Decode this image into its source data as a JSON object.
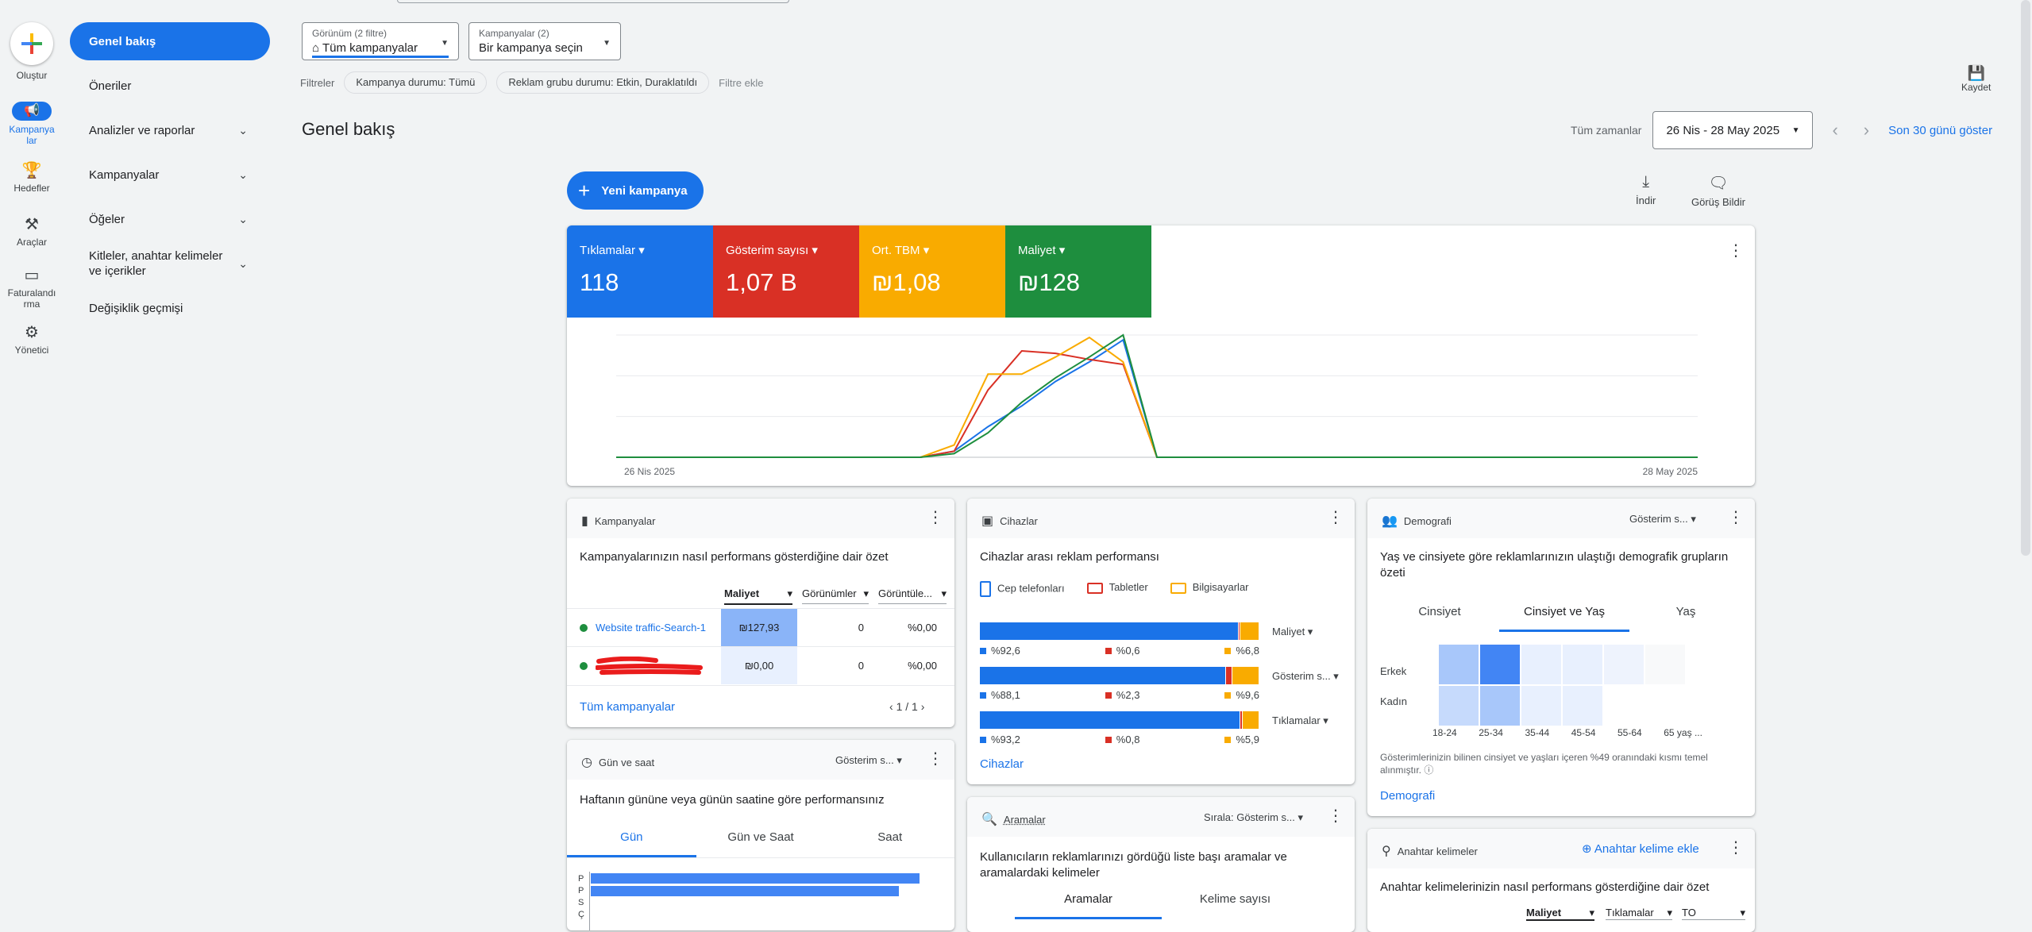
{
  "rail": {
    "create": "Oluştur",
    "campaigns": "Kampanyalar",
    "goals": "Hedefler",
    "tools": "Araçlar",
    "billing": "Faturalandırma",
    "admin": "Yönetici"
  },
  "nav": {
    "overview": "Genel bakış",
    "recommendations": "Öneriler",
    "insights": "Analizler ve raporlar",
    "campaigns": "Kampanyalar",
    "assets": "Öğeler",
    "audiences": "Kitleler, anahtar kelimeler ve içerikler",
    "changes": "Değişiklik geçmişi"
  },
  "view_select": {
    "label": "Görünüm (2 filtre)",
    "value": "Tüm kampanyalar"
  },
  "campaign_select": {
    "label": "Kampanyalar (2)",
    "value": "Bir kampanya seçin"
  },
  "filters": {
    "label": "Filtreler",
    "chip1": "Kampanya durumu: Tümü",
    "chip2": "Reklam grubu durumu: Etkin, Duraklatıldı",
    "add": "Filtre ekle"
  },
  "save_label": "Kaydet",
  "page_title": "Genel bakış",
  "date": {
    "all_time": "Tüm zamanlar",
    "range": "26 Nis - 28 May 2025",
    "last30": "Son 30 günü göster"
  },
  "new_campaign": "Yeni kampanya",
  "download": "İndir",
  "feedback": "Görüş Bildir",
  "colors": {
    "blue": "#1a73e8",
    "red": "#d93025",
    "yellow": "#f9ab00",
    "green": "#1e8e3e"
  },
  "scorecards": [
    {
      "title": "Tıklamalar",
      "value": "118"
    },
    {
      "title": "Gösterim sayısı",
      "value": "1,07 B"
    },
    {
      "title": "Ort. TBM",
      "value": "₪1,08"
    },
    {
      "title": "Maliyet",
      "value": "₪128"
    }
  ],
  "chart_data": {
    "type": "line",
    "x_start": "26 Nis 2025",
    "x_end": "28 May 2025",
    "x": [
      0,
      1,
      2,
      3,
      4,
      5,
      6,
      7,
      8,
      9,
      10,
      11,
      12,
      13,
      14,
      15,
      16,
      17,
      18,
      19,
      20,
      21,
      22,
      23,
      24,
      25,
      26,
      27,
      28,
      29,
      30,
      31,
      32
    ],
    "series": [
      {
        "name": "Tıklamalar",
        "color": "#1a73e8",
        "values": [
          0,
          0,
          0,
          0,
          0,
          0,
          0,
          0,
          0,
          0,
          0.05,
          0.25,
          0.42,
          0.62,
          0.78,
          0.96,
          0,
          0,
          0,
          0,
          0,
          0,
          0,
          0,
          0,
          0,
          0,
          0,
          0,
          0,
          0,
          0,
          0
        ]
      },
      {
        "name": "Gösterim sayısı",
        "color": "#d93025",
        "values": [
          0,
          0,
          0,
          0,
          0,
          0,
          0,
          0,
          0,
          0,
          0.05,
          0.55,
          0.87,
          0.85,
          0.8,
          0.76,
          0,
          0,
          0,
          0,
          0,
          0,
          0,
          0,
          0,
          0,
          0,
          0,
          0,
          0,
          0,
          0,
          0
        ]
      },
      {
        "name": "Ort. TBM",
        "color": "#f9ab00",
        "values": [
          0,
          0,
          0,
          0,
          0,
          0,
          0,
          0,
          0,
          0,
          0.1,
          0.68,
          0.68,
          0.82,
          0.98,
          0.78,
          0,
          0,
          0,
          0,
          0,
          0,
          0,
          0,
          0,
          0,
          0,
          0,
          0,
          0,
          0,
          0,
          0
        ]
      },
      {
        "name": "Maliyet",
        "color": "#1e8e3e",
        "values": [
          0,
          0,
          0,
          0,
          0,
          0,
          0,
          0,
          0,
          0,
          0.03,
          0.2,
          0.45,
          0.65,
          0.82,
          1.0,
          0,
          0,
          0,
          0,
          0,
          0,
          0,
          0,
          0,
          0,
          0,
          0,
          0,
          0,
          0,
          0,
          0
        ]
      }
    ]
  },
  "campaigns_card": {
    "title": "Kampanyalar",
    "subtitle": "Kampanyalarınızın nasıl performans gösterdiğine dair özet",
    "col1": "Maliyet",
    "col2": "Görünümler",
    "col3": "Görüntüle...",
    "rows": [
      {
        "name": "Website traffic-Search-1",
        "cost": "₪127,93",
        "views": "0",
        "rate": "%0,00"
      },
      {
        "name": "",
        "cost": "₪0,00",
        "views": "0",
        "rate": "%0,00"
      }
    ],
    "all_link": "Tüm kampanyalar",
    "pager": "1 / 1"
  },
  "devices_card": {
    "title": "Cihazlar",
    "subtitle": "Cihazlar arası reklam performansı",
    "legend": [
      "Cep telefonları",
      "Tabletler",
      "Bilgisayarlar"
    ],
    "rows": [
      {
        "metric": "Maliyet",
        "mobile": 92.6,
        "tablet": 0.6,
        "desktop": 6.8,
        "mobile_lbl": "%92,6",
        "tablet_lbl": "%0,6",
        "desktop_lbl": "%6,8"
      },
      {
        "metric": "Gösterim s...",
        "mobile": 88.1,
        "tablet": 2.3,
        "desktop": 9.6,
        "mobile_lbl": "%88,1",
        "tablet_lbl": "%2,3",
        "desktop_lbl": "%9,6"
      },
      {
        "metric": "Tıklamalar",
        "mobile": 93.2,
        "tablet": 0.8,
        "desktop": 5.9,
        "mobile_lbl": "%93,2",
        "tablet_lbl": "%0,8",
        "desktop_lbl": "%5,9"
      }
    ],
    "link": "Cihazlar"
  },
  "demo_card": {
    "title": "Demografi",
    "dropdown": "Gösterim s...",
    "subtitle": "Yaş ve cinsiyete göre reklamlarınızın ulaştığı demografik grupların özeti",
    "tabs": [
      "Cinsiyet",
      "Cinsiyet ve Yaş",
      "Yaş"
    ],
    "rows": [
      "Erkek",
      "Kadın"
    ],
    "cols": [
      "18-24",
      "25-34",
      "35-44",
      "45-54",
      "55-64",
      "65 yaş ..."
    ],
    "note": "Gösterimlerinizin bilinen cinsiyet ve yaşları içeren %49 oranındaki kısmı temel alınmıştır.",
    "link": "Demografi"
  },
  "day_card": {
    "title": "Gün ve saat",
    "dropdown": "Gösterim s...",
    "subtitle": "Haftanın gününe veya günün saatine göre performansınız",
    "tabs": [
      "Gün",
      "Gün ve Saat",
      "Saat"
    ],
    "days": [
      "P",
      "P",
      "S",
      "Ç"
    ]
  },
  "search_card": {
    "title": "Aramalar",
    "sort_label": "Sırala:",
    "sort_value": "Gösterim s...",
    "subtitle": "Kullanıcıların reklamlarınızı gördüğü liste başı aramalar ve aramalardaki kelimeler",
    "tabs": [
      "Aramalar",
      "Kelime sayısı"
    ]
  },
  "kw_card": {
    "title": "Anahtar kelimeler",
    "add": "Anahtar kelime ekle",
    "subtitle": "Anahtar kelimelerinizin nasıl performans gösterdiğine dair özet",
    "col1": "Maliyet",
    "col2": "Tıklamalar",
    "col3": "TO"
  }
}
